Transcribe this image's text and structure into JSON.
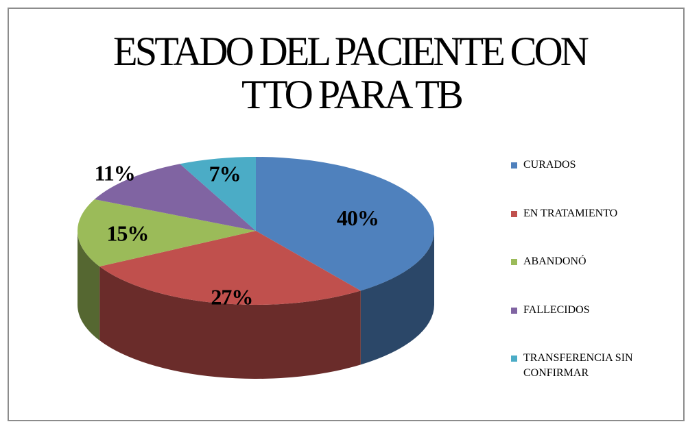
{
  "chart_data": {
    "type": "pie3d",
    "title": [
      "ESTADO DEL PACIENTE CON",
      "TTO PARA TB"
    ],
    "categories": [
      "CURADOS",
      "EN TRATAMIENTO",
      "ABANDONÓ",
      "FALLECIDOS",
      "TRANSFERENCIA SIN CONFIRMAR"
    ],
    "values": [
      40,
      27,
      15,
      11,
      7
    ],
    "value_labels": [
      "40%",
      "27%",
      "15%",
      "11%",
      "7%"
    ],
    "colors": [
      "#4f81bd",
      "#c0504d",
      "#9bbb59",
      "#8064a2",
      "#4bacc6"
    ],
    "legend": "right"
  }
}
